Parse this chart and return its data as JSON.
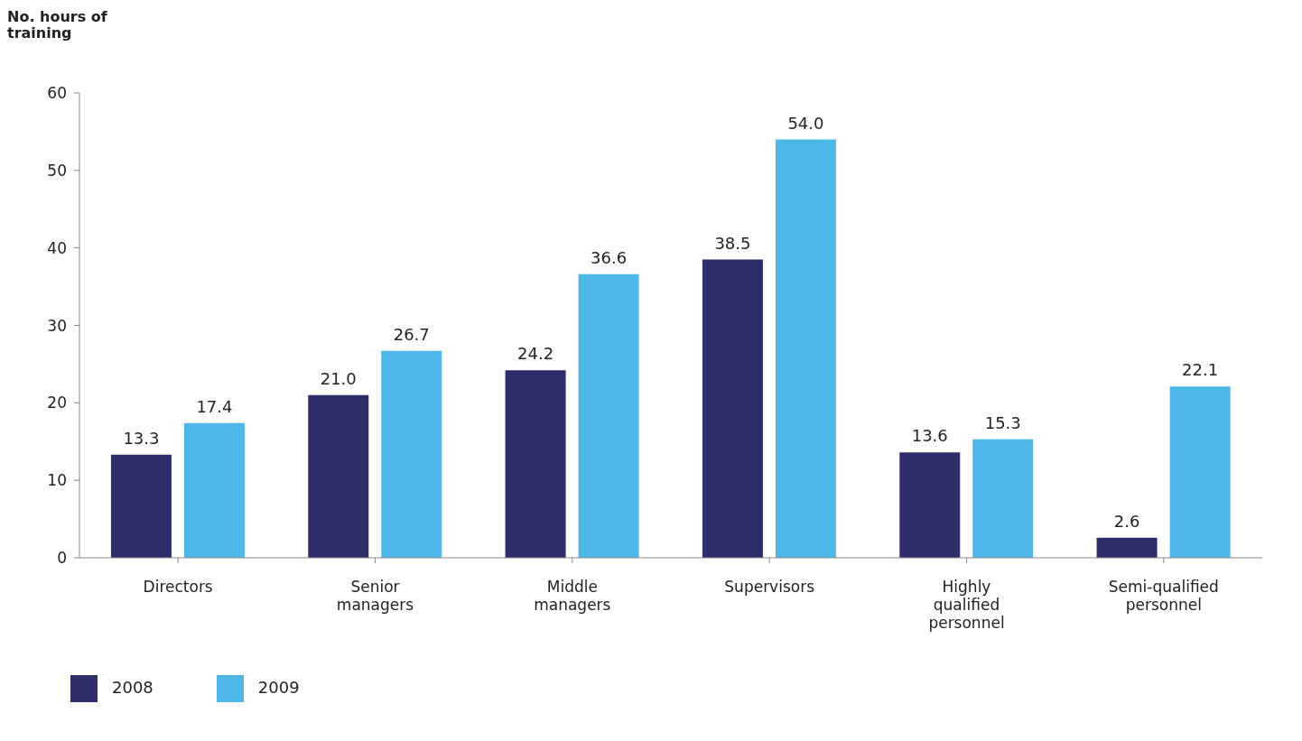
{
  "chart_data": {
    "type": "bar",
    "ylabel": "No. hours of training",
    "categories": [
      "Directors",
      "Senior managers",
      "Middle managers",
      "Supervisors",
      "Highly qualified personnel",
      "Semi-qualified personnel"
    ],
    "series": [
      {
        "name": "2008",
        "color": "#2e2d6b",
        "values": [
          13.3,
          21.0,
          24.2,
          38.5,
          13.6,
          2.6
        ],
        "value_labels": [
          "13.3",
          "21.0",
          "24.2",
          "38.5",
          "13.6",
          "2.6"
        ]
      },
      {
        "name": "2009",
        "color": "#4db8e8",
        "values": [
          17.4,
          26.7,
          36.6,
          54.0,
          15.3,
          22.1
        ],
        "value_labels": [
          "17.4",
          "26.7",
          "36.6",
          "54.0",
          "15.3",
          "22.1"
        ]
      }
    ],
    "ylim": [
      0,
      60
    ],
    "yticks": [
      0,
      10,
      20,
      30,
      40,
      50,
      60
    ],
    "grid": false,
    "legend": "bottom left"
  }
}
